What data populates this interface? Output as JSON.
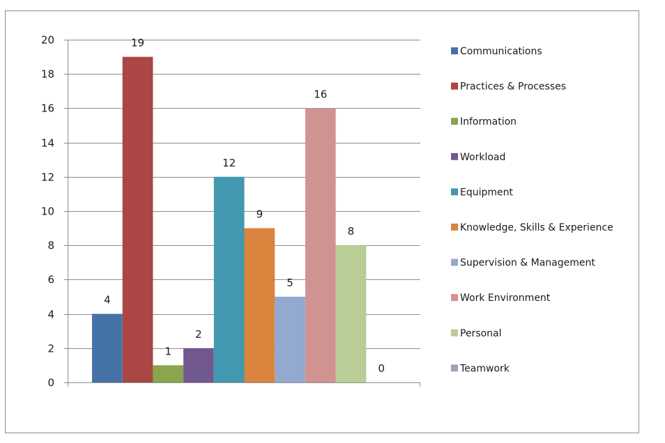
{
  "colors": {
    "gridline": "#8c8c8c",
    "axis": "#8c8c8c",
    "border": "#8c8c8c"
  },
  "chart_data": {
    "type": "bar",
    "title": "",
    "xlabel": "",
    "ylabel": "",
    "ylim": [
      0,
      20
    ],
    "yticks": [
      0,
      2,
      4,
      6,
      8,
      10,
      12,
      14,
      16,
      18,
      20
    ],
    "grid": true,
    "legend_position": "right",
    "data_labels": true,
    "series": [
      {
        "name": "Communications",
        "value": 4,
        "color": "#4572A7"
      },
      {
        "name": "Practices & Processes",
        "value": 19,
        "color": "#AA4643"
      },
      {
        "name": "Information",
        "value": 1,
        "color": "#89A54E"
      },
      {
        "name": "Workload",
        "value": 2,
        "color": "#71588F"
      },
      {
        "name": "Equipment",
        "value": 12,
        "color": "#4198AF"
      },
      {
        "name": "Knowledge, Skills & Experience",
        "value": 9,
        "color": "#DB843D"
      },
      {
        "name": "Supervision & Management",
        "value": 5,
        "color": "#93A9CF"
      },
      {
        "name": "Work Environment",
        "value": 16,
        "color": "#D19392"
      },
      {
        "name": "Personal",
        "value": 8,
        "color": "#B9CD96"
      },
      {
        "name": "Teamwork",
        "value": 0,
        "color": "#A99BBD"
      }
    ]
  }
}
